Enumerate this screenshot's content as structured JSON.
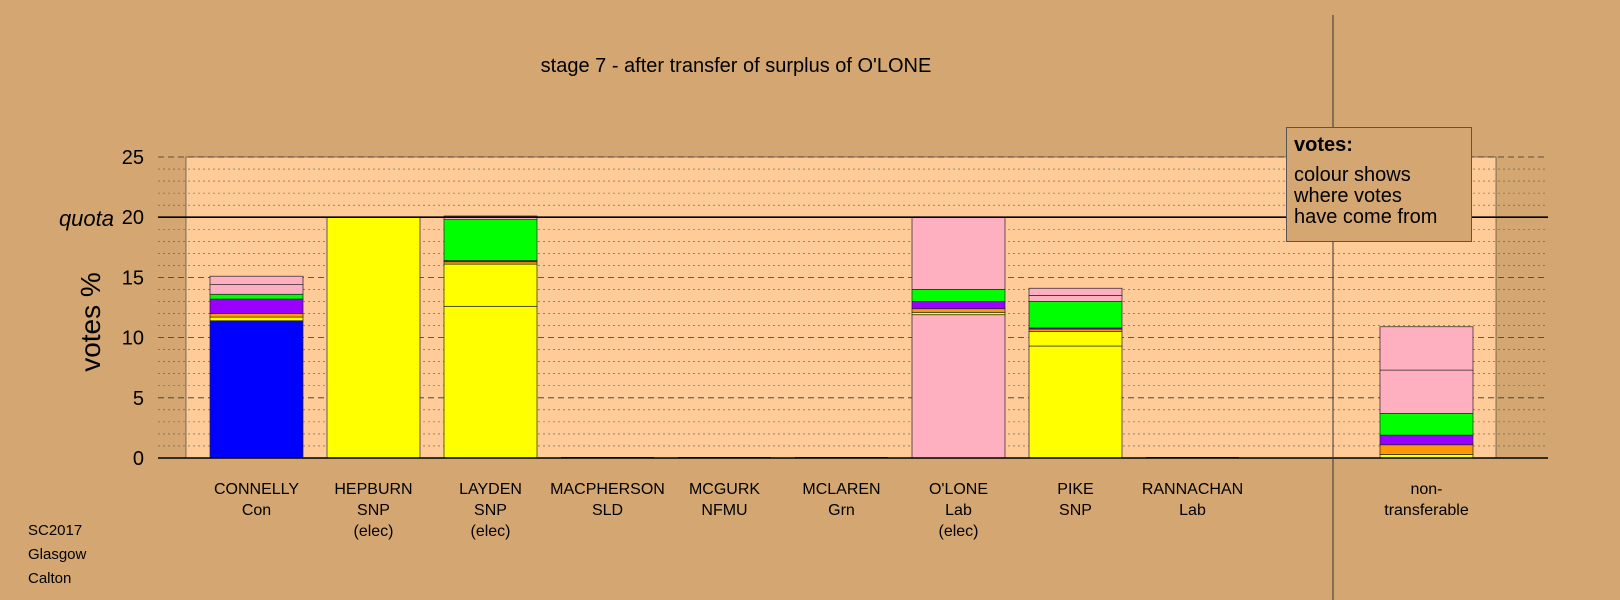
{
  "chart_data": {
    "type": "bar",
    "stacked": true,
    "title": "stage 7 - after transfer of surplus of O'LONE",
    "ylabel": "votes %",
    "ylim": [
      0,
      25
    ],
    "yticks": [
      0,
      5,
      10,
      15,
      20,
      25
    ],
    "quota_label": "quota",
    "quota": 20,
    "grid": true,
    "categories": [
      {
        "name": "CONNELLY",
        "party": "Con",
        "status": "",
        "segments": [
          {
            "value": 11.4,
            "color": "#0000FF"
          },
          {
            "value": 0.3,
            "color": "#FFFF00"
          },
          {
            "value": 0.3,
            "color": "#FF9900"
          },
          {
            "value": 1.2,
            "color": "#9900FF"
          },
          {
            "value": 0.4,
            "color": "#00FF00"
          },
          {
            "value": 0.8,
            "color": "#FFB0C0"
          },
          {
            "value": 0.7,
            "color": "#FFB0C0"
          }
        ]
      },
      {
        "name": "HEPBURN",
        "party": "SNP",
        "status": "(elec)",
        "segments": [
          {
            "value": 20.0,
            "color": "#FFFF00"
          }
        ]
      },
      {
        "name": "LAYDEN",
        "party": "SNP",
        "status": "(elec)",
        "segments": [
          {
            "value": 12.6,
            "color": "#FFFF00"
          },
          {
            "value": 3.5,
            "color": "#FFFF00"
          },
          {
            "value": 0.2,
            "color": "#FF9900"
          },
          {
            "value": 0.1,
            "color": "#9900FF"
          },
          {
            "value": 3.4,
            "color": "#00FF00"
          },
          {
            "value": 0.3,
            "color": "#FFB0C0"
          }
        ]
      },
      {
        "name": "MACPHERSON",
        "party": "SLD",
        "status": "",
        "segments": []
      },
      {
        "name": "MCGURK",
        "party": "NFMU",
        "status": "",
        "segments": []
      },
      {
        "name": "MCLAREN",
        "party": "Grn",
        "status": "",
        "segments": []
      },
      {
        "name": "O'LONE",
        "party": "Lab",
        "status": "(elec)",
        "segments": [
          {
            "value": 11.9,
            "color": "#FFB0C0"
          },
          {
            "value": 0.2,
            "color": "#FFFF00"
          },
          {
            "value": 0.3,
            "color": "#FF9900"
          },
          {
            "value": 0.6,
            "color": "#9900FF"
          },
          {
            "value": 1.0,
            "color": "#00FF00"
          },
          {
            "value": 6.0,
            "color": "#FFB0C0"
          }
        ]
      },
      {
        "name": "PIKE",
        "party": "SNP",
        "status": "",
        "segments": [
          {
            "value": 9.3,
            "color": "#FFFF00"
          },
          {
            "value": 1.2,
            "color": "#FFFF00"
          },
          {
            "value": 0.2,
            "color": "#FF9900"
          },
          {
            "value": 0.1,
            "color": "#9900FF"
          },
          {
            "value": 2.2,
            "color": "#00FF00"
          },
          {
            "value": 0.5,
            "color": "#FFB0C0"
          },
          {
            "value": 0.6,
            "color": "#FFB0C0"
          }
        ]
      },
      {
        "name": "RANNACHAN",
        "party": "Lab",
        "status": "",
        "segments": []
      }
    ],
    "nontransferable": {
      "label_line1": "non-",
      "label_line2": "transferable",
      "segments": [
        {
          "value": 0.3,
          "color": "#FFFF00"
        },
        {
          "value": 0.8,
          "color": "#FF9900"
        },
        {
          "value": 0.8,
          "color": "#9900FF"
        },
        {
          "value": 1.8,
          "color": "#00FF00"
        },
        {
          "value": 3.6,
          "color": "#FFB0C0"
        },
        {
          "value": 3.6,
          "color": "#FFB0C0"
        }
      ]
    }
  },
  "legend": {
    "title": "votes:",
    "line1": "colour shows",
    "line2": "where votes",
    "line3": "have come from"
  },
  "footer": {
    "line1": "SC2017",
    "line2": "Glasgow",
    "line3": "Calton"
  },
  "colors": {
    "background": "#D4A772",
    "plot_band": "#FFCC99"
  }
}
